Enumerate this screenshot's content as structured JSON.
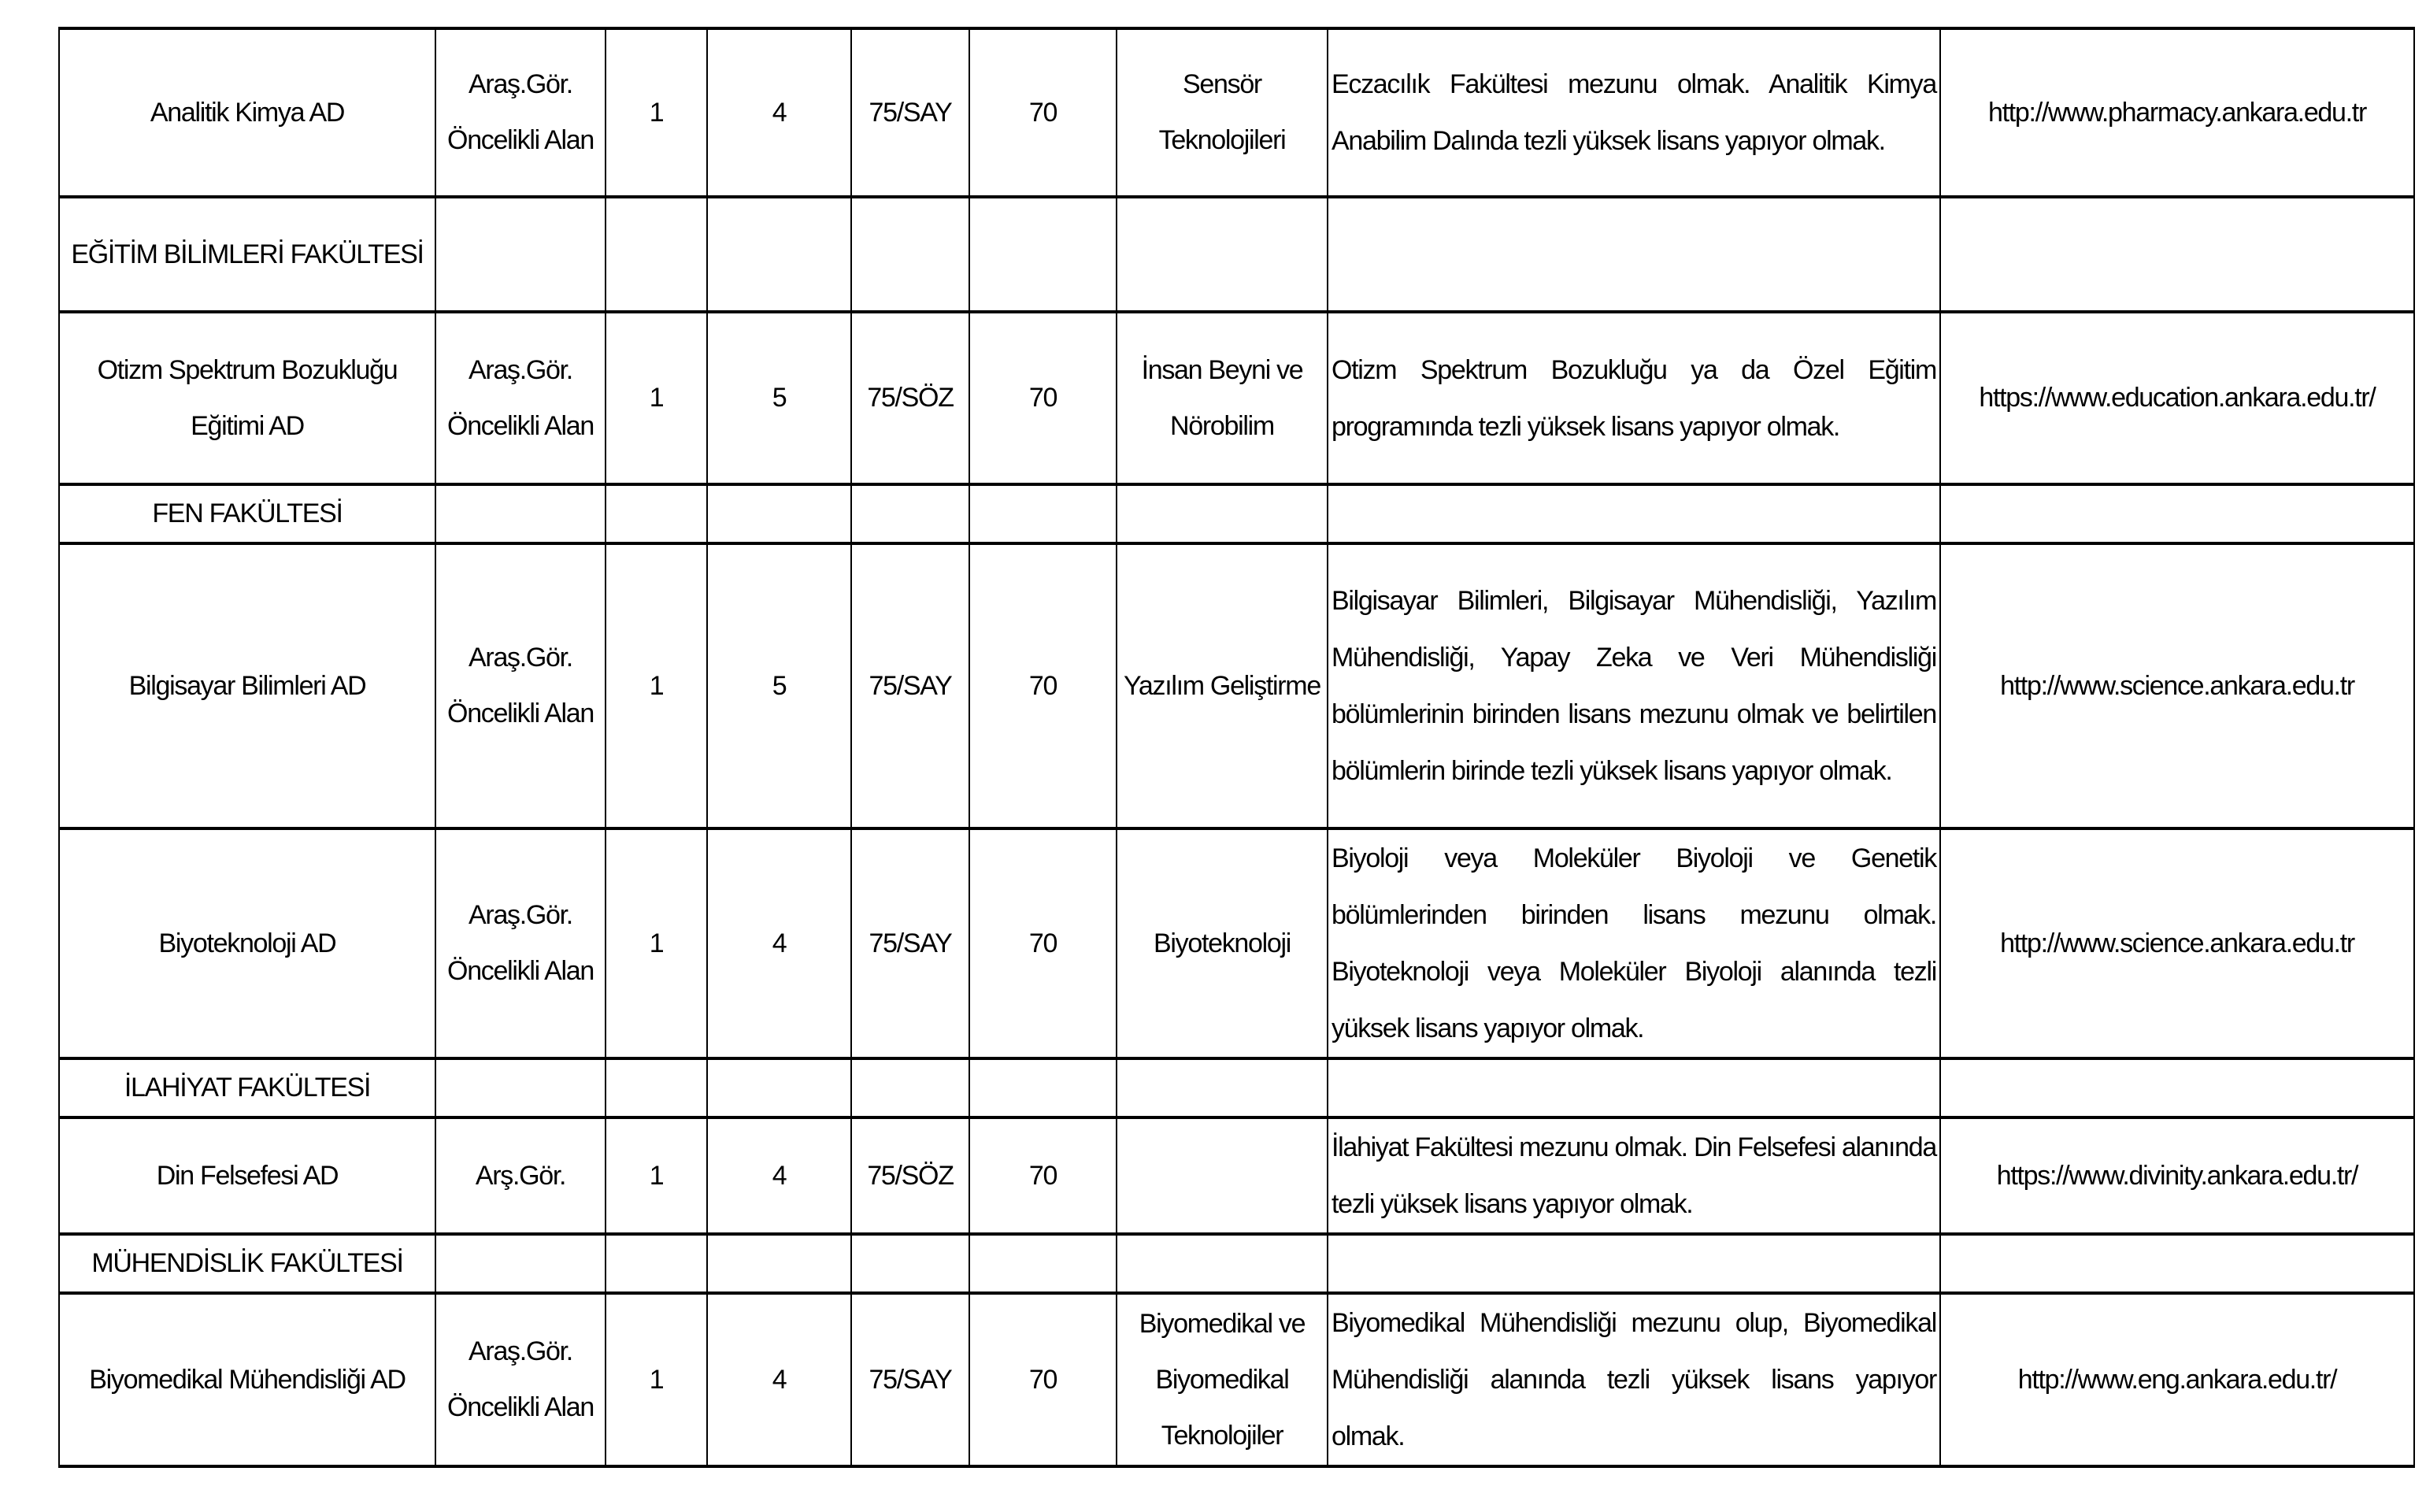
{
  "rows": [
    {
      "type": "program",
      "unit": "Analitik Kimya AD",
      "title": "Araş.Gör. Öncelikli Alan",
      "count": "1",
      "min": "4",
      "score": "75/SAY",
      "lang": "70",
      "area": "Sensör Teknolojileri",
      "desc": "Eczacılık Fakültesi mezunu olmak. Analitik Kimya Anabilim Dalında tezli yüksek lisans yapıyor olmak.",
      "url": "http://www.pharmacy.ankara.edu.tr"
    },
    {
      "type": "faculty",
      "unit": "EĞİTİM BİLİMLERİ FAKÜLTESİ"
    },
    {
      "type": "program",
      "unit": "Otizm Spektrum Bozukluğu Eğitimi AD",
      "title": "Araş.Gör. Öncelikli Alan",
      "count": "1",
      "min": "5",
      "score": "75/SÖZ",
      "lang": "70",
      "area": "İnsan Beyni ve Nörobilim",
      "desc": "Otizm Spektrum Bozukluğu ya da Özel Eğitim programında tezli yüksek lisans yapıyor olmak.",
      "url": "https://www.education.ankara.edu.tr/"
    },
    {
      "type": "faculty",
      "unit": "FEN FAKÜLTESİ"
    },
    {
      "type": "program",
      "unit": "Bilgisayar Bilimleri AD",
      "title": "Araş.Gör. Öncelikli Alan",
      "count": "1",
      "min": "5",
      "score": "75/SAY",
      "lang": "70",
      "area": "Yazılım Geliştirme",
      "desc": "Bilgisayar Bilimleri, Bilgisayar Mühendisliği, Yazılım Mühendisliği, Yapay Zeka ve Veri Mühendisliği bölümlerinin birinden lisans mezunu olmak ve belirtilen bölümlerin birinde tezli yüksek lisans yapıyor olmak.",
      "url": "http://www.science.ankara.edu.tr"
    },
    {
      "type": "program",
      "unit": "Biyoteknoloji AD",
      "title": "Araş.Gör. Öncelikli Alan",
      "count": "1",
      "min": "4",
      "score": "75/SAY",
      "lang": "70",
      "area": "Biyoteknoloji",
      "desc": "Biyoloji veya Moleküler Biyoloji ve Genetik bölümlerinden birinden lisans mezunu olmak. Biyoteknoloji veya Moleküler Biyoloji alanında tezli yüksek lisans yapıyor olmak.",
      "url": "http://www.science.ankara.edu.tr"
    },
    {
      "type": "faculty",
      "unit": "İLAHİYAT FAKÜLTESİ"
    },
    {
      "type": "program",
      "unit": "Din Felsefesi AD",
      "title": "Arş.Gör.",
      "count": "1",
      "min": "4",
      "score": "75/SÖZ",
      "lang": "70",
      "area": "",
      "desc": "İlahiyat Fakültesi mezunu olmak. Din Felsefesi alanında tezli yüksek lisans yapıyor olmak.",
      "url": "https://www.divinity.ankara.edu.tr/"
    },
    {
      "type": "faculty",
      "unit": "MÜHENDİSLİK FAKÜLTESİ"
    },
    {
      "type": "program",
      "unit": "Biyomedikal Mühendisliği AD",
      "title": "Araş.Gör. Öncelikli Alan",
      "count": "1",
      "min": "4",
      "score": "75/SAY",
      "lang": "70",
      "area": "Biyomedikal ve Biyomedikal Teknolojiler",
      "desc": "Biyomedikal Mühendisliği mezunu olup, Biyomedikal Mühendisliği alanında tezli yüksek lisans yapıyor olmak.",
      "url": "http://www.eng.ankara.edu.tr/"
    }
  ]
}
